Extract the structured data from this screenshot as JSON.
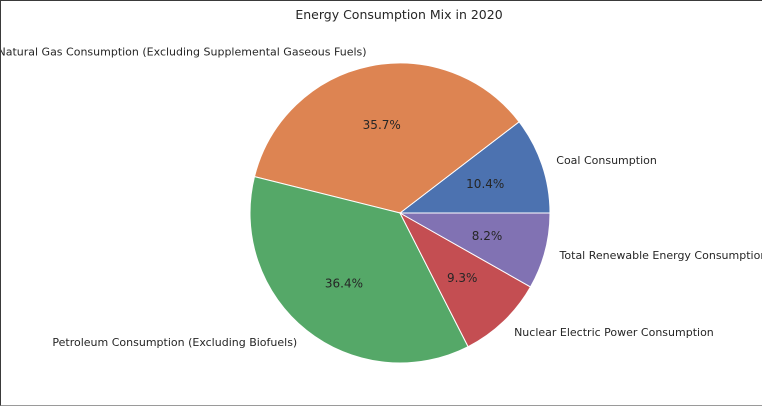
{
  "chart_data": {
    "type": "pie",
    "title": "Energy Consumption Mix in 2020",
    "slices": [
      {
        "label": "Coal Consumption",
        "value": 10.4,
        "pct_label": "10.4%",
        "color": "#4c72b0"
      },
      {
        "label": "Natural Gas Consumption (Excluding Supplemental Gaseous Fuels)",
        "value": 35.7,
        "pct_label": "35.7%",
        "color": "#dd8452"
      },
      {
        "label": "Petroleum Consumption (Excluding Biofuels)",
        "value": 36.4,
        "pct_label": "36.4%",
        "color": "#55a868"
      },
      {
        "label": "Nuclear Electric Power Consumption",
        "value": 9.3,
        "pct_label": "9.3%",
        "color": "#c44e52"
      },
      {
        "label": "Total Renewable Energy Consumption",
        "value": 8.2,
        "pct_label": "8.2%",
        "color": "#8172b3"
      }
    ],
    "start_angle_deg": 0,
    "direction": "counterclockwise",
    "slice_edge_color": "#ffffff"
  }
}
